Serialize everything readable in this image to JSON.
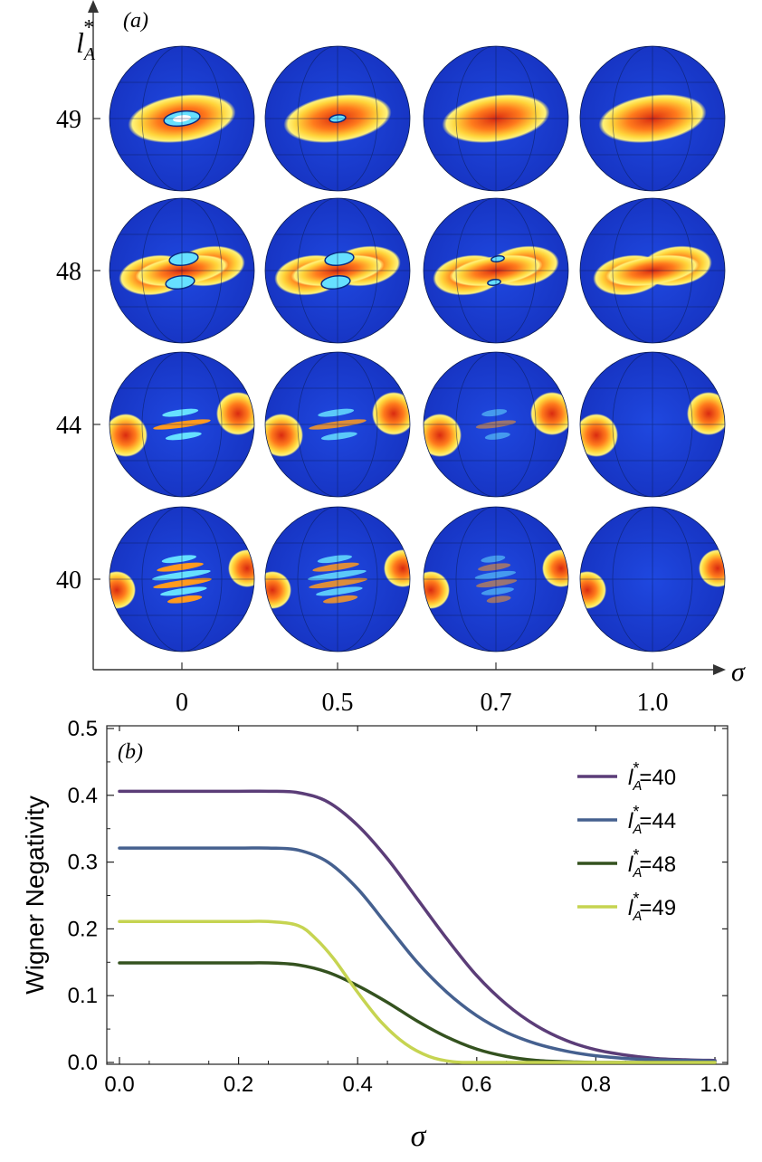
{
  "panel_a": {
    "label": "(a)",
    "y_axis_label": "l",
    "y_axis_sub": "A",
    "y_axis_sup": "*",
    "x_axis_label": "σ",
    "row_labels": [
      "49",
      "48",
      "44",
      "40"
    ],
    "col_labels": [
      "0",
      "0.5",
      "0.7",
      "1.0"
    ],
    "colors": {
      "sphere": "#1a3fd4",
      "outer": "#ffe640",
      "mid": "#ff9a1f",
      "core": "#e8300f",
      "negative": "#66e0ff",
      "negative_core": "#ffffff"
    }
  },
  "chart_data": {
    "type": "line",
    "label": "(b)",
    "xlabel": "σ",
    "ylabel": "Wigner Negativity",
    "xlim": [
      0,
      1.02
    ],
    "ylim": [
      -0.005,
      0.5
    ],
    "xticks": [
      "0.0",
      "0.2",
      "0.4",
      "0.6",
      "0.8",
      "1.0"
    ],
    "yticks": [
      "0.0",
      "0.1",
      "0.2",
      "0.3",
      "0.4",
      "0.5"
    ],
    "legend_position": "top-right",
    "series": [
      {
        "name": "l*A=40",
        "legend_sup": "*",
        "legend_sub": "A",
        "legend_value": "=40",
        "color": "#5b3d78",
        "x": [
          0,
          0.1,
          0.2,
          0.25,
          0.3,
          0.35,
          0.4,
          0.45,
          0.5,
          0.55,
          0.6,
          0.65,
          0.7,
          0.75,
          0.8,
          0.85,
          0.9,
          0.95,
          1.0
        ],
        "y": [
          0.406,
          0.406,
          0.406,
          0.406,
          0.404,
          0.39,
          0.355,
          0.305,
          0.245,
          0.185,
          0.13,
          0.087,
          0.055,
          0.033,
          0.019,
          0.011,
          0.006,
          0.004,
          0.003
        ]
      },
      {
        "name": "l*A=44",
        "legend_sup": "*",
        "legend_sub": "A",
        "legend_value": "=44",
        "color": "#45608f",
        "x": [
          0,
          0.1,
          0.2,
          0.25,
          0.3,
          0.35,
          0.4,
          0.45,
          0.5,
          0.55,
          0.6,
          0.65,
          0.7,
          0.75,
          0.8,
          0.85,
          0.9,
          0.95,
          1.0
        ],
        "y": [
          0.321,
          0.321,
          0.321,
          0.321,
          0.318,
          0.3,
          0.26,
          0.205,
          0.15,
          0.105,
          0.07,
          0.045,
          0.028,
          0.017,
          0.01,
          0.006,
          0.004,
          0.003,
          0.002
        ]
      },
      {
        "name": "l*A=48",
        "legend_sup": "*",
        "legend_sub": "A",
        "legend_value": "=48",
        "color": "#34521f",
        "x": [
          0,
          0.1,
          0.2,
          0.25,
          0.3,
          0.35,
          0.4,
          0.45,
          0.5,
          0.55,
          0.6,
          0.65,
          0.7,
          0.75,
          0.8,
          0.85,
          0.9,
          1.0
        ],
        "y": [
          0.149,
          0.149,
          0.149,
          0.149,
          0.146,
          0.135,
          0.115,
          0.09,
          0.062,
          0.038,
          0.02,
          0.009,
          0.003,
          0.001,
          0.0,
          0.0,
          0.0,
          0.0
        ]
      },
      {
        "name": "l*A=49",
        "legend_sup": "*",
        "legend_sub": "A",
        "legend_value": "=49",
        "color": "#c6d451",
        "x": [
          0,
          0.1,
          0.2,
          0.25,
          0.3,
          0.33,
          0.36,
          0.4,
          0.44,
          0.48,
          0.52,
          0.56,
          0.6,
          0.7,
          0.8,
          1.0
        ],
        "y": [
          0.211,
          0.211,
          0.211,
          0.211,
          0.205,
          0.185,
          0.155,
          0.105,
          0.06,
          0.028,
          0.009,
          0.001,
          0.0,
          0.0,
          0.0,
          0.0
        ]
      }
    ]
  }
}
